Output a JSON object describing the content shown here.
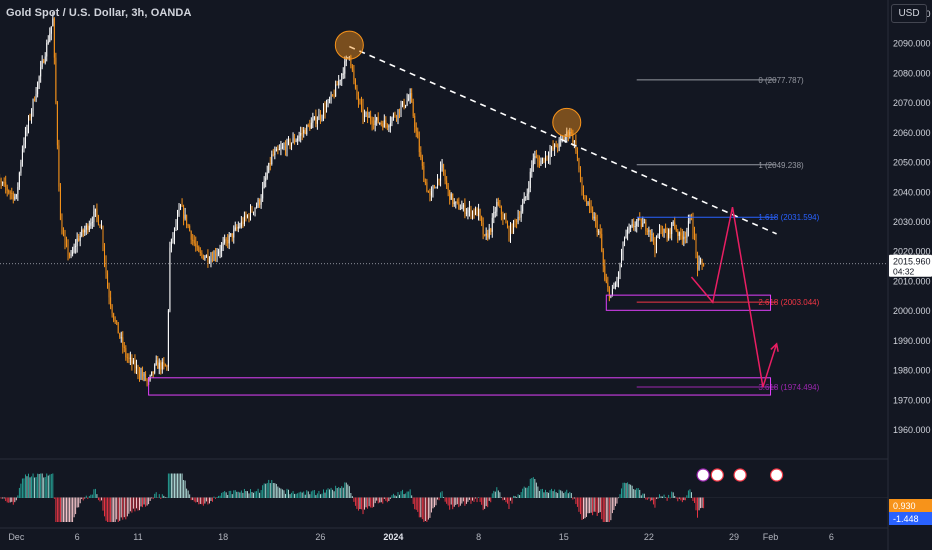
{
  "header": {
    "title": "Gold Spot / U.S. Dollar, 3h, OANDA",
    "currency": "USD"
  },
  "colors": {
    "background": "#131722",
    "candle_up": "#ffffff",
    "candle_down": "#f7931a",
    "trendline": "#ffffff",
    "fib_gray": "#9598a1",
    "fib_blue": "#2962ff",
    "fib_red": "#f23645",
    "fib_purple": "#9c27b0",
    "zone": "#e040fb",
    "projection": "#e91e63",
    "highlight_circle": "#f7931a"
  },
  "chart_data": {
    "type": "candlestick",
    "symbol": "Gold Spot / U.S. Dollar",
    "timeframe": "3h",
    "broker": "OANDA",
    "ylim": [
      1955,
      2106
    ],
    "y_ticks": [
      2100,
      2090,
      2080,
      2070,
      2060,
      2050,
      2040,
      2030,
      2020,
      2010,
      2000,
      1990,
      1980,
      1970,
      1960
    ],
    "y_tick_labels": [
      "2100.000",
      "2090.000",
      "2080.000",
      "2070.000",
      "2060.000",
      "2050.000",
      "2040.000",
      "2030.000",
      "2020.000",
      "2010.000",
      "2000.000",
      "1990.000",
      "1980.000",
      "1970.000",
      "1960.000"
    ],
    "x_tick_labels": [
      "Dec",
      "6",
      "11",
      "18",
      "26",
      "2024",
      "8",
      "15",
      "22",
      "29",
      "Feb",
      "6"
    ],
    "x_tick_dates": [
      "2023-12-01",
      "2023-12-06",
      "2023-12-11",
      "2023-12-18",
      "2023-12-26",
      "2024-01-01",
      "2024-01-08",
      "2024-01-15",
      "2024-01-22",
      "2024-01-29",
      "2024-02-01",
      "2024-02-06"
    ],
    "x_range": [
      "2023-11-29T00:00",
      "2024-02-10T00:00"
    ],
    "anchors": [
      [
        "2023-11-29T00:00",
        2045
      ],
      [
        "2023-11-30T00:00",
        2042
      ],
      [
        "2023-12-01T00:00",
        2038
      ],
      [
        "2023-12-01T12:00",
        2055
      ],
      [
        "2023-12-04T00:00",
        2098
      ],
      [
        "2023-12-04T06:00",
        2070
      ],
      [
        "2023-12-04T15:00",
        2030
      ],
      [
        "2023-12-05T00:00",
        2022
      ],
      [
        "2023-12-05T12:00",
        2018
      ],
      [
        "2023-12-06T00:00",
        2024
      ],
      [
        "2023-12-06T18:00",
        2028
      ],
      [
        "2023-12-07T12:00",
        2033
      ],
      [
        "2023-12-08T00:00",
        2028
      ],
      [
        "2023-12-08T12:00",
        2008
      ],
      [
        "2023-12-09T00:00",
        1998
      ],
      [
        "2023-12-10T00:00",
        1985
      ],
      [
        "2023-12-11T00:00",
        1980
      ],
      [
        "2023-12-11T21:00",
        1976
      ],
      [
        "2023-12-12T12:00",
        1982
      ],
      [
        "2023-12-13T09:00",
        1981
      ],
      [
        "2023-12-13T15:00",
        2021
      ],
      [
        "2023-12-14T12:00",
        2035
      ],
      [
        "2023-12-15T00:00",
        2030
      ],
      [
        "2023-12-15T12:00",
        2024
      ],
      [
        "2023-12-16T00:00",
        2019
      ],
      [
        "2023-12-17T00:00",
        2018
      ],
      [
        "2023-12-18T00:00",
        2022
      ],
      [
        "2023-12-19T00:00",
        2027
      ],
      [
        "2023-12-20T00:00",
        2032
      ],
      [
        "2023-12-21T00:00",
        2037
      ],
      [
        "2023-12-22T00:00",
        2052
      ],
      [
        "2023-12-23T00:00",
        2055
      ],
      [
        "2023-12-24T00:00",
        2058
      ],
      [
        "2023-12-25T00:00",
        2062
      ],
      [
        "2023-12-26T00:00",
        2066
      ],
      [
        "2023-12-27T00:00",
        2072
      ],
      [
        "2023-12-27T18:00",
        2080
      ],
      [
        "2023-12-28T09:00",
        2087
      ],
      [
        "2023-12-28T21:00",
        2074
      ],
      [
        "2023-12-29T12:00",
        2066
      ],
      [
        "2023-12-30T12:00",
        2064
      ],
      [
        "2023-12-31T12:00",
        2063
      ],
      [
        "2024-01-01T12:00",
        2068
      ],
      [
        "2024-01-02T09:00",
        2072
      ],
      [
        "2024-01-02T21:00",
        2060
      ],
      [
        "2024-01-03T12:00",
        2045
      ],
      [
        "2024-01-04T00:00",
        2038
      ],
      [
        "2024-01-04T12:00",
        2043
      ],
      [
        "2024-01-05T00:00",
        2048
      ],
      [
        "2024-01-05T12:00",
        2040
      ],
      [
        "2024-01-06T00:00",
        2036
      ],
      [
        "2024-01-07T00:00",
        2034
      ],
      [
        "2024-01-08T00:00",
        2033
      ],
      [
        "2024-01-08T12:00",
        2024
      ],
      [
        "2024-01-09T00:00",
        2028
      ],
      [
        "2024-01-09T12:00",
        2036
      ],
      [
        "2024-01-10T00:00",
        2032
      ],
      [
        "2024-01-10T12:00",
        2026
      ],
      [
        "2024-01-11T00:00",
        2030
      ],
      [
        "2024-01-11T12:00",
        2034
      ],
      [
        "2024-01-12T00:00",
        2040
      ],
      [
        "2024-01-12T12:00",
        2052
      ],
      [
        "2024-01-13T00:00",
        2050
      ],
      [
        "2024-01-14T00:00",
        2054
      ],
      [
        "2024-01-15T00:00",
        2058
      ],
      [
        "2024-01-15T12:00",
        2061
      ],
      [
        "2024-01-16T00:00",
        2055
      ],
      [
        "2024-01-16T12:00",
        2040
      ],
      [
        "2024-01-17T00:00",
        2035
      ],
      [
        "2024-01-17T12:00",
        2031
      ],
      [
        "2024-01-18T00:00",
        2025
      ],
      [
        "2024-01-18T09:00",
        2010
      ],
      [
        "2024-01-18T21:00",
        2005
      ],
      [
        "2024-01-19T12:00",
        2012
      ],
      [
        "2024-01-20T00:00",
        2025
      ],
      [
        "2024-01-21T00:00",
        2030
      ],
      [
        "2024-01-22T00:00",
        2028
      ],
      [
        "2024-01-22T12:00",
        2022
      ],
      [
        "2024-01-23T00:00",
        2028
      ],
      [
        "2024-01-23T12:00",
        2025
      ],
      [
        "2024-01-24T00:00",
        2030
      ],
      [
        "2024-01-24T12:00",
        2025
      ],
      [
        "2024-01-25T00:00",
        2026
      ],
      [
        "2024-01-25T12:00",
        2032
      ],
      [
        "2024-01-26T00:00",
        2015
      ],
      [
        "2024-01-26T12:00",
        2016
      ]
    ],
    "last_price": "2015.960",
    "countdown": "04:32",
    "trendline": [
      [
        "2023-12-28T09:00",
        2089
      ],
      [
        "2024-02-01T12:00",
        2026
      ]
    ],
    "circles": [
      [
        "2023-12-28T09:00",
        2089.5
      ],
      [
        "2024-01-15T06:00",
        2063.5
      ]
    ],
    "fib_levels": [
      {
        "ratio": "0",
        "value": 2077.787,
        "label": "0 (2077.787)",
        "color": "#9598a1"
      },
      {
        "ratio": "1",
        "value": 2049.238,
        "label": "1 (2049.238)",
        "color": "#9598a1"
      },
      {
        "ratio": "1.618",
        "value": 2031.594,
        "label": "1.618 (2031.594)",
        "color": "#2962ff"
      },
      {
        "ratio": "2.618",
        "value": 2003.044,
        "label": "2.618 (2003.044)",
        "color": "#f23645"
      },
      {
        "ratio": "3.618",
        "value": 1974.494,
        "label": "3.618 (1974.494)",
        "color": "#9c27b0"
      }
    ],
    "zones": [
      {
        "from": "2024-01-18T12:00",
        "to": "2024-02-01T00:00",
        "low": 2000.3,
        "high": 2005.4
      },
      {
        "from": "2023-12-11T21:00",
        "to": "2024-02-01T00:00",
        "low": 1971.8,
        "high": 1977.6
      }
    ],
    "projection_path": [
      [
        "2024-01-25T12:00",
        2011.5
      ],
      [
        "2024-01-27T06:00",
        2003
      ],
      [
        "2024-01-28T21:00",
        2035
      ],
      [
        "2024-01-31T09:00",
        1974.5
      ],
      [
        "2024-02-01T12:00",
        1989
      ]
    ],
    "oscillator": {
      "value_top": "0.930",
      "value_bottom": "-1.448",
      "color_top": "#f7931a",
      "color_bottom": "#2962ff"
    }
  }
}
